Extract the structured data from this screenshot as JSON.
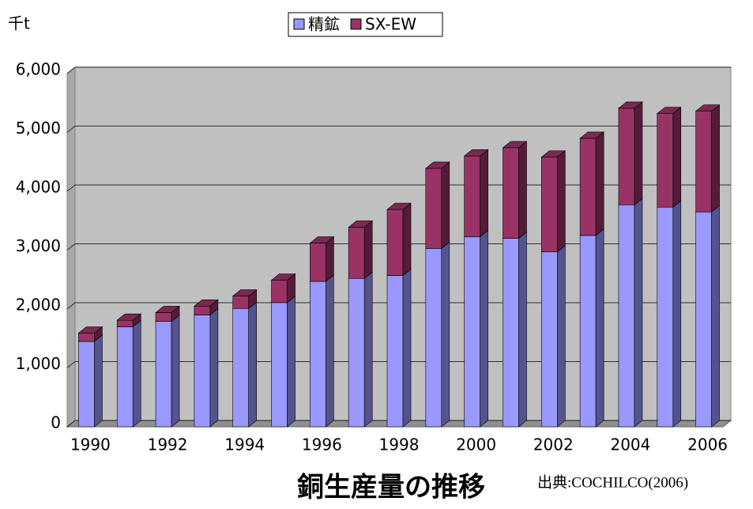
{
  "chart_data": {
    "type": "bar",
    "stacked": true,
    "title": "銅生産量の推移",
    "y_label": "千t",
    "source": "出典:COCHILCO(2006)",
    "categories": [
      "1990",
      null,
      "1992",
      null,
      "1994",
      null,
      "1996",
      null,
      "1998",
      null,
      "2000",
      null,
      "2002",
      null,
      "2004",
      null,
      "2006"
    ],
    "series": [
      {
        "name": "精鉱",
        "color": "#9999ff",
        "values": [
          1450,
          1700,
          1790,
          1900,
          2010,
          2110,
          2470,
          2520,
          2570,
          3030,
          3230,
          3200,
          2970,
          3250,
          3770,
          3730,
          3650
        ]
      },
      {
        "name": "SX-EW",
        "color": "#993366",
        "values": [
          140,
          110,
          150,
          150,
          210,
          380,
          650,
          870,
          1120,
          1360,
          1370,
          1540,
          1610,
          1650,
          1640,
          1590,
          1710
        ]
      }
    ],
    "ylim": [
      0,
      6000
    ],
    "yticks": [
      {
        "value": 0,
        "label": "0"
      },
      {
        "value": 1000,
        "label": "1,000"
      },
      {
        "value": 2000,
        "label": "2,000"
      },
      {
        "value": 3000,
        "label": "3,000"
      },
      {
        "value": 4000,
        "label": "4,000"
      },
      {
        "value": 5000,
        "label": "5,000"
      },
      {
        "value": 6000,
        "label": "6,000"
      }
    ],
    "grid": true
  }
}
